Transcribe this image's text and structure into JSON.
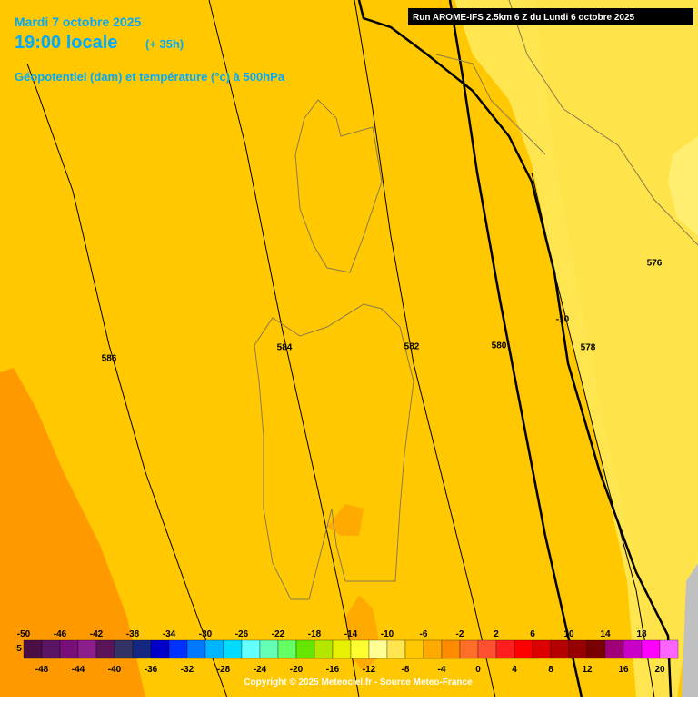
{
  "header": {
    "date": "Mardi 7 octobre 2025",
    "time": "19:00 locale",
    "lead": "(+ 35h)",
    "field": "Géopotentiel (dam) et température (°c) à 500hPa",
    "run": "Run AROME-IFS 2.5km 6 Z du Lundi 6 octobre 2025"
  },
  "contour_labels": [
    "586",
    "584",
    "582",
    "580",
    "578",
    "576",
    "-10"
  ],
  "colorbar": {
    "edge_label": "5",
    "top_ticks": [
      -50,
      -46,
      -42,
      -38,
      -34,
      -30,
      -26,
      -22,
      -18,
      -14,
      -10,
      -6,
      -2,
      2,
      6,
      10,
      14,
      18
    ],
    "bottom_ticks": [
      -48,
      -44,
      -40,
      -36,
      -32,
      -28,
      -24,
      -20,
      -16,
      -12,
      -8,
      -4,
      0,
      4,
      8,
      12,
      16,
      20
    ],
    "colors": [
      "#4b0f46",
      "#5a1464",
      "#780f78",
      "#8c1e8c",
      "#5a145a",
      "#323264",
      "#142882",
      "#0000c8",
      "#0032ff",
      "#0078ff",
      "#00b4ff",
      "#00dcff",
      "#64ffff",
      "#64ffb4",
      "#64ff64",
      "#64e600",
      "#b4e600",
      "#e6f000",
      "#ffff32",
      "#ffff96",
      "#ffe650",
      "#ffc800",
      "#ffaa00",
      "#ff8c00",
      "#ff6e28",
      "#ff5032",
      "#ff1e1e",
      "#ff0000",
      "#dc0000",
      "#b40000",
      "#960000",
      "#780000",
      "#a00078",
      "#c800c8",
      "#ff00ff",
      "#ff64ff"
    ]
  },
  "copyright": "Copyright © 2025 Meteociel.fr - Source Meteo-France"
}
